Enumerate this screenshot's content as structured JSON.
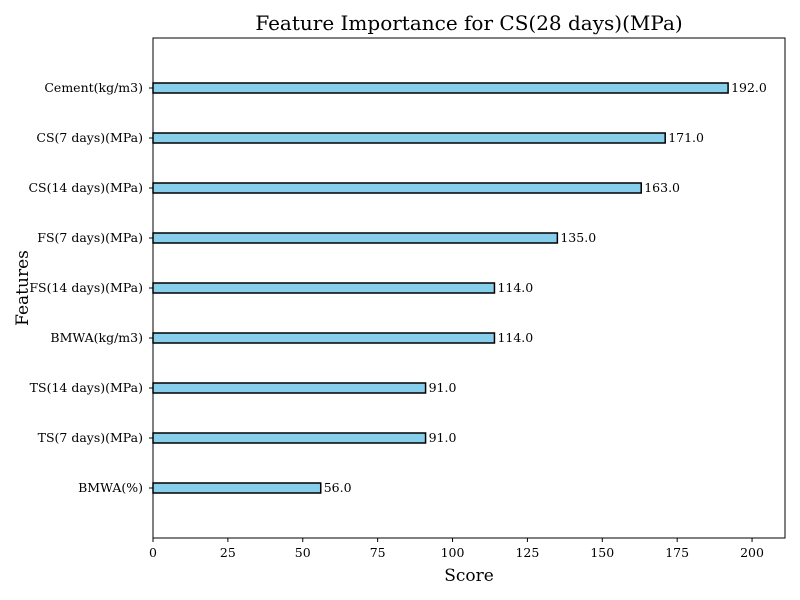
{
  "chart_data": {
    "type": "bar",
    "orientation": "horizontal",
    "title": "Feature Importance for CS(28 days)(MPa)",
    "xlabel": "Score",
    "ylabel": "Features",
    "xlim": [
      0,
      211
    ],
    "xticks": [
      0,
      25,
      50,
      75,
      100,
      125,
      150,
      175,
      200
    ],
    "grid": false,
    "categories": [
      "Cement(kg/m3)",
      "CS(7 days)(MPa)",
      "CS(14 days)(MPa)",
      "FS(7 days)(MPa)",
      "FS(14 days)(MPa)",
      "BMWA(kg/m3)",
      "TS(14 days)(MPa)",
      "TS(7 days)(MPa)",
      "BMWA(%)"
    ],
    "values": [
      192.0,
      171.0,
      163.0,
      135.0,
      114.0,
      114.0,
      91.0,
      91.0,
      56.0
    ],
    "value_labels": [
      "192.0",
      "171.0",
      "163.0",
      "135.0",
      "114.0",
      "114.0",
      "91.0",
      "91.0",
      "56.0"
    ],
    "bar_color": "#87ceeb",
    "edge_color": "#000000"
  }
}
